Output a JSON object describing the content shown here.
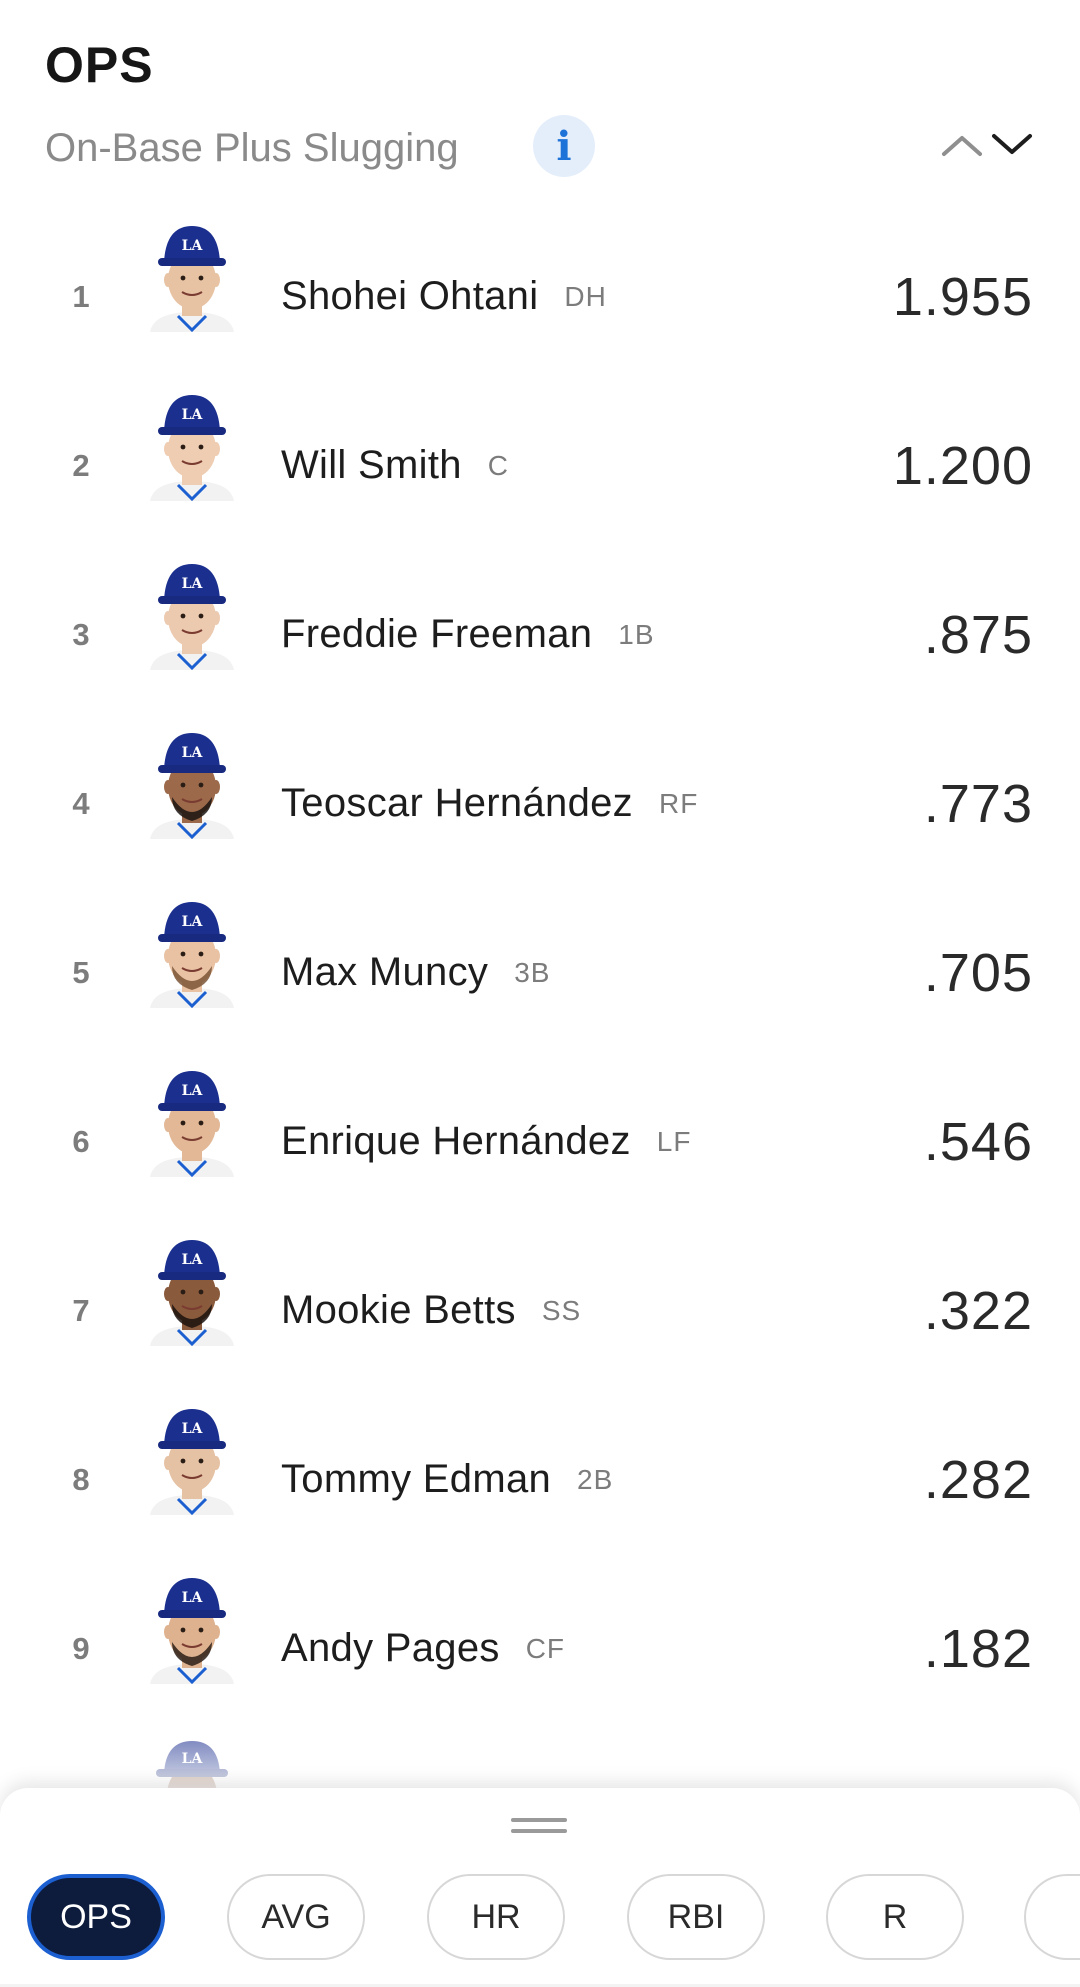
{
  "header": {
    "title": "OPS",
    "subtitle": "On-Base Plus Slugging",
    "info_icon": "info-icon",
    "sort_icons": [
      "chevron-up-icon",
      "chevron-down-icon"
    ]
  },
  "players": [
    {
      "rank": "1",
      "name": "Shohei Ohtani",
      "position": "DH",
      "value": "1.955",
      "skin": "#e8c3a3",
      "hair": "#2a211c",
      "beard": false
    },
    {
      "rank": "2",
      "name": "Will Smith",
      "position": "C",
      "value": "1.200",
      "skin": "#efcdb2",
      "hair": "#5a3d28",
      "beard": false
    },
    {
      "rank": "3",
      "name": "Freddie Freeman",
      "position": "1B",
      "value": ".875",
      "skin": "#eccab0",
      "hair": "#6b4a33",
      "beard": false
    },
    {
      "rank": "4",
      "name": "Teoscar Hernández",
      "position": "RF",
      "value": ".773",
      "skin": "#9c6a4a",
      "hair": "#1b1410",
      "beard": true
    },
    {
      "rank": "5",
      "name": "Max Muncy",
      "position": "3B",
      "value": ".705",
      "skin": "#e9c2a4",
      "hair": "#7a5536",
      "beard": true
    },
    {
      "rank": "6",
      "name": "Enrique Hernández",
      "position": "LF",
      "value": ".546",
      "skin": "#e2b896",
      "hair": "#3b2a1f",
      "beard": false
    },
    {
      "rank": "7",
      "name": "Mookie Betts",
      "position": "SS",
      "value": ".322",
      "skin": "#8a5a3d",
      "hair": "#1a120d",
      "beard": true
    },
    {
      "rank": "8",
      "name": "Tommy Edman",
      "position": "2B",
      "value": ".282",
      "skin": "#e6c2a5",
      "hair": "#3a2a1f",
      "beard": false
    },
    {
      "rank": "9",
      "name": "Andy Pages",
      "position": "CF",
      "value": ".182",
      "skin": "#dfb28f",
      "hair": "#2a1d15",
      "beard": true
    }
  ],
  "colors": {
    "cap": "#1b2f8f",
    "accent": "#1c5fd0",
    "active_chip_bg": "#0d1b3d"
  },
  "tabs": [
    {
      "label": "OPS",
      "active": true
    },
    {
      "label": "AVG",
      "active": false
    },
    {
      "label": "HR",
      "active": false
    },
    {
      "label": "RBI",
      "active": false
    },
    {
      "label": "R",
      "active": false
    }
  ]
}
